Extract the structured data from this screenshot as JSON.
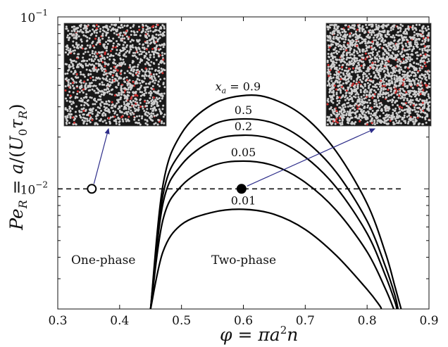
{
  "chart_data": {
    "type": "line",
    "xlabel": "φ = πa²n",
    "ylabel": "Pe_R = a/(U₀τ_R)",
    "xlim": [
      0.3,
      0.9
    ],
    "ylim": [
      0.002,
      0.1
    ],
    "yscale": "log",
    "x_ticks": [
      "0.3",
      "0.4",
      "0.5",
      "0.6",
      "0.7",
      "0.8",
      "0.9"
    ],
    "y_ticks": [
      {
        "value": 0.01,
        "base": "10",
        "exp": "−2"
      },
      {
        "value": 0.1,
        "base": "10",
        "exp": "−1"
      }
    ],
    "series": [
      {
        "name": "x_a = 0.9",
        "label": "= 0.9",
        "peak_x": 0.605,
        "peak_y": 0.035,
        "points": [
          [
            0.45,
            0.002
          ],
          [
            0.47,
            0.0105
          ],
          [
            0.5,
            0.021
          ],
          [
            0.55,
            0.031
          ],
          [
            0.605,
            0.035
          ],
          [
            0.65,
            0.033
          ],
          [
            0.7,
            0.026
          ],
          [
            0.75,
            0.0165
          ],
          [
            0.8,
            0.0082
          ],
          [
            0.83,
            0.0042
          ],
          [
            0.845,
            0.0027
          ],
          [
            0.855,
            0.002
          ]
        ]
      },
      {
        "name": "x_a = 0.5",
        "label": "0.5",
        "peak_x": 0.6,
        "peak_y": 0.0255,
        "points": [
          [
            0.45,
            0.002
          ],
          [
            0.47,
            0.0092
          ],
          [
            0.5,
            0.0165
          ],
          [
            0.55,
            0.0235
          ],
          [
            0.6,
            0.0255
          ],
          [
            0.65,
            0.024
          ],
          [
            0.7,
            0.019
          ],
          [
            0.75,
            0.0125
          ],
          [
            0.8,
            0.0065
          ],
          [
            0.83,
            0.0035
          ],
          [
            0.845,
            0.0024
          ],
          [
            0.85,
            0.002
          ]
        ]
      },
      {
        "name": "x_a = 0.2",
        "label": "0.2",
        "peak_x": 0.6,
        "peak_y": 0.0205,
        "points": [
          [
            0.45,
            0.002
          ],
          [
            0.47,
            0.0082
          ],
          [
            0.5,
            0.0138
          ],
          [
            0.55,
            0.019
          ],
          [
            0.6,
            0.0205
          ],
          [
            0.65,
            0.0193
          ],
          [
            0.7,
            0.0153
          ],
          [
            0.75,
            0.0102
          ],
          [
            0.8,
            0.0055
          ],
          [
            0.83,
            0.0031
          ],
          [
            0.845,
            0.0022
          ],
          [
            0.848,
            0.002
          ]
        ]
      },
      {
        "name": "x_a = 0.05",
        "label": "0.05",
        "peak_x": 0.6,
        "peak_y": 0.0145,
        "points": [
          [
            0.45,
            0.002
          ],
          [
            0.47,
            0.0066
          ],
          [
            0.5,
            0.0104
          ],
          [
            0.55,
            0.0136
          ],
          [
            0.6,
            0.0145
          ],
          [
            0.65,
            0.0136
          ],
          [
            0.7,
            0.0109
          ],
          [
            0.75,
            0.0075
          ],
          [
            0.8,
            0.0043
          ],
          [
            0.83,
            0.0026
          ],
          [
            0.843,
            0.002
          ]
        ]
      },
      {
        "name": "x_a = 0.01",
        "label": "0.01",
        "peak_x": 0.6,
        "peak_y": 0.0076,
        "points": [
          [
            0.45,
            0.002
          ],
          [
            0.47,
            0.0043
          ],
          [
            0.5,
            0.0062
          ],
          [
            0.55,
            0.0073
          ],
          [
            0.6,
            0.0076
          ],
          [
            0.65,
            0.0071
          ],
          [
            0.7,
            0.0058
          ],
          [
            0.75,
            0.0041
          ],
          [
            0.8,
            0.0026
          ],
          [
            0.82,
            0.0021
          ],
          [
            0.823,
            0.002
          ]
        ]
      }
    ],
    "reference_line": {
      "y": 0.01,
      "style": "dashed"
    },
    "points": [
      {
        "x": 0.355,
        "y": 0.01,
        "filled": false,
        "region": "One-phase"
      },
      {
        "x": 0.597,
        "y": 0.01,
        "filled": true,
        "region": "Two-phase"
      }
    ],
    "region_labels": [
      "One-phase",
      "Two-phase"
    ],
    "insets": [
      {
        "target": "open-point",
        "description": "simulation snapshot"
      },
      {
        "target": "filled-point",
        "description": "simulation snapshot"
      }
    ],
    "colors": {
      "curve": "#000000",
      "arrow": "#2d2d8a",
      "particle": "#cfcfcf",
      "active": "#d03030",
      "inset_bg": "#181818"
    }
  }
}
